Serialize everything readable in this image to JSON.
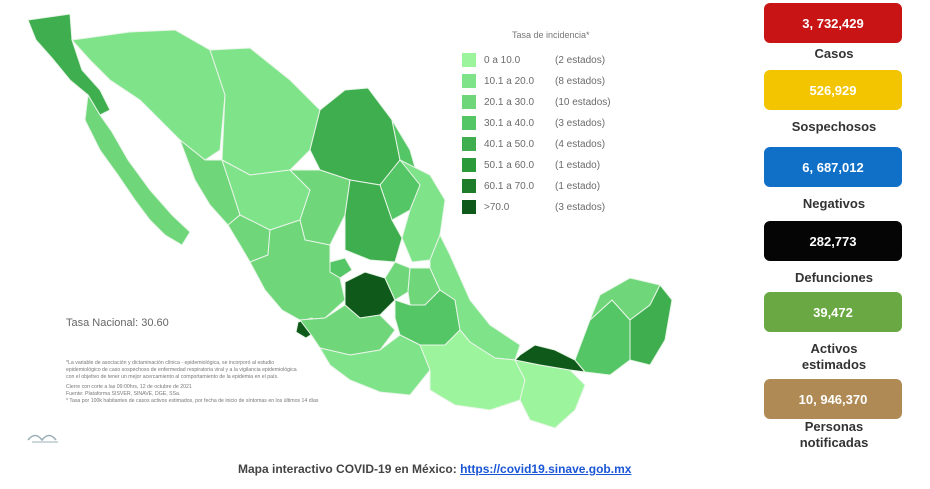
{
  "legend": {
    "title": "Tasa de incidencia*",
    "items": [
      {
        "range": "0  a  10.0",
        "count": "(2 estados)",
        "color": "#9cf59c"
      },
      {
        "range": "10.1 a  20.0",
        "count": "(8 estados)",
        "color": "#7fe38a"
      },
      {
        "range": "20.1 a  30.0",
        "count": "(10 estados)",
        "color": "#6fd77a"
      },
      {
        "range": "30.1 a  40.0",
        "count": "(3 estados)",
        "color": "#55c665"
      },
      {
        "range": "40.1 a  50.0",
        "count": "(4 estados)",
        "color": "#3fae4f"
      },
      {
        "range": "50.1 a  60.0",
        "count": "(1 estado)",
        "color": "#2b9a3a"
      },
      {
        "range": "60.1 a  70.0",
        "count": "(1 estado)",
        "color": "#1e7d2b"
      },
      {
        "range": ">70.0",
        "count": "(3 estados)",
        "color": "#0f5a1a"
      }
    ]
  },
  "national_rate": "Tasa Nacional: 30.60",
  "notes": [
    "*La variable de asociación y dictaminación clínica - epidemiológica, se incorporó al estudio",
    "epidemiológico de caso sospechoso de enfermedad respiratoria viral y a la vigilancia epidemiológica",
    "con el objetivo de tener un mejor acercamiento al comportamiento de la epidemia en el país.",
    "Cierre con corte a las 09:00hrs, 12 de octubre de 2021",
    "Fuente: Plataforma SISVER, SINAVE, DGE, SSa.",
    "* Tasa por 100k habitantes de casos activos estimados, por fecha de inicio de síntomas en los últimos 14 días"
  ],
  "footer": {
    "text": "Mapa interactivo COVID-19 en México: ",
    "link": "https://covid19.sinave.gob.mx"
  },
  "stats": [
    {
      "value": "3, 732,429",
      "label": "Casos",
      "color": "#c81414"
    },
    {
      "value": "526,929",
      "label": "Sospechosos",
      "color": "#f2c500"
    },
    {
      "value": "6, 687,012",
      "label": "Negativos",
      "color": "#1070c8"
    },
    {
      "value": "282,773",
      "label": "Defunciones",
      "color": "#050505"
    },
    {
      "value": "39,472",
      "label": "Activos estimados",
      "color": "#6aa843"
    },
    {
      "value": "10, 946,370",
      "label": "Personas notificadas",
      "color": "#b08a54"
    }
  ],
  "map_states": [
    {
      "name": "baja-california",
      "color": "#3fae4f"
    },
    {
      "name": "baja-california-sur",
      "color": "#6fd77a"
    },
    {
      "name": "sonora",
      "color": "#7fe38a"
    },
    {
      "name": "chihuahua",
      "color": "#7fe38a"
    },
    {
      "name": "coahuila",
      "color": "#3fae4f"
    },
    {
      "name": "nuevo-leon",
      "color": "#55c665"
    },
    {
      "name": "tamaulipas",
      "color": "#7fe38a"
    },
    {
      "name": "sinaloa",
      "color": "#6fd77a"
    },
    {
      "name": "durango",
      "color": "#7fe38a"
    },
    {
      "name": "zacatecas",
      "color": "#6fd77a"
    },
    {
      "name": "san-luis-potosi",
      "color": "#3fae4f"
    },
    {
      "name": "nayarit",
      "color": "#6fd77a"
    },
    {
      "name": "aguascalientes",
      "color": "#55c665"
    },
    {
      "name": "jalisco",
      "color": "#6fd77a"
    },
    {
      "name": "guanajuato",
      "color": "#0f5a1a"
    },
    {
      "name": "queretaro",
      "color": "#6fd77a"
    },
    {
      "name": "hidalgo",
      "color": "#6fd77a"
    },
    {
      "name": "colima",
      "color": "#0f5a1a"
    },
    {
      "name": "michoacan",
      "color": "#6fd77a"
    },
    {
      "name": "mexico-cdmx",
      "color": "#55c665"
    },
    {
      "name": "veracruz",
      "color": "#7fe38a"
    },
    {
      "name": "guerrero",
      "color": "#7fe38a"
    },
    {
      "name": "oaxaca",
      "color": "#9cf59c"
    },
    {
      "name": "chiapas",
      "color": "#9cf59c"
    },
    {
      "name": "tabasco",
      "color": "#0f5a1a"
    },
    {
      "name": "campeche",
      "color": "#55c665"
    },
    {
      "name": "yucatan",
      "color": "#6fd77a"
    },
    {
      "name": "quintana-roo",
      "color": "#3fae4f"
    }
  ]
}
